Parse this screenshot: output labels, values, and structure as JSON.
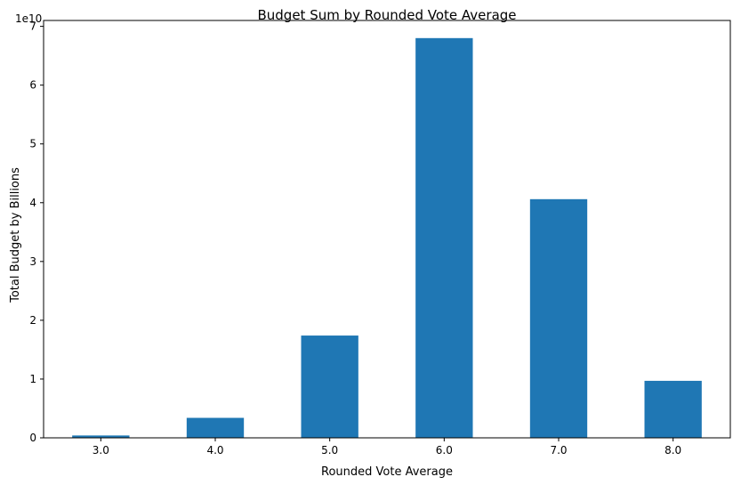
{
  "chart_data": {
    "type": "bar",
    "title": "Budget Sum by Rounded Vote Average",
    "xlabel": "Rounded Vote Average",
    "ylabel": "Total Budget by Billions",
    "y_offset_label": "1e10",
    "categories": [
      "3.0",
      "4.0",
      "5.0",
      "6.0",
      "7.0",
      "8.0"
    ],
    "values": [
      0.04,
      0.34,
      1.74,
      6.8,
      4.06,
      0.97
    ],
    "ylim": [
      0,
      7.1
    ],
    "yticks": [
      0,
      1,
      2,
      3,
      4,
      5,
      6,
      7
    ],
    "ytick_labels": [
      "0",
      "1",
      "2",
      "3",
      "4",
      "5",
      "6",
      "7"
    ],
    "bar_color": "#1f77b4",
    "grid": false,
    "legend": false
  }
}
